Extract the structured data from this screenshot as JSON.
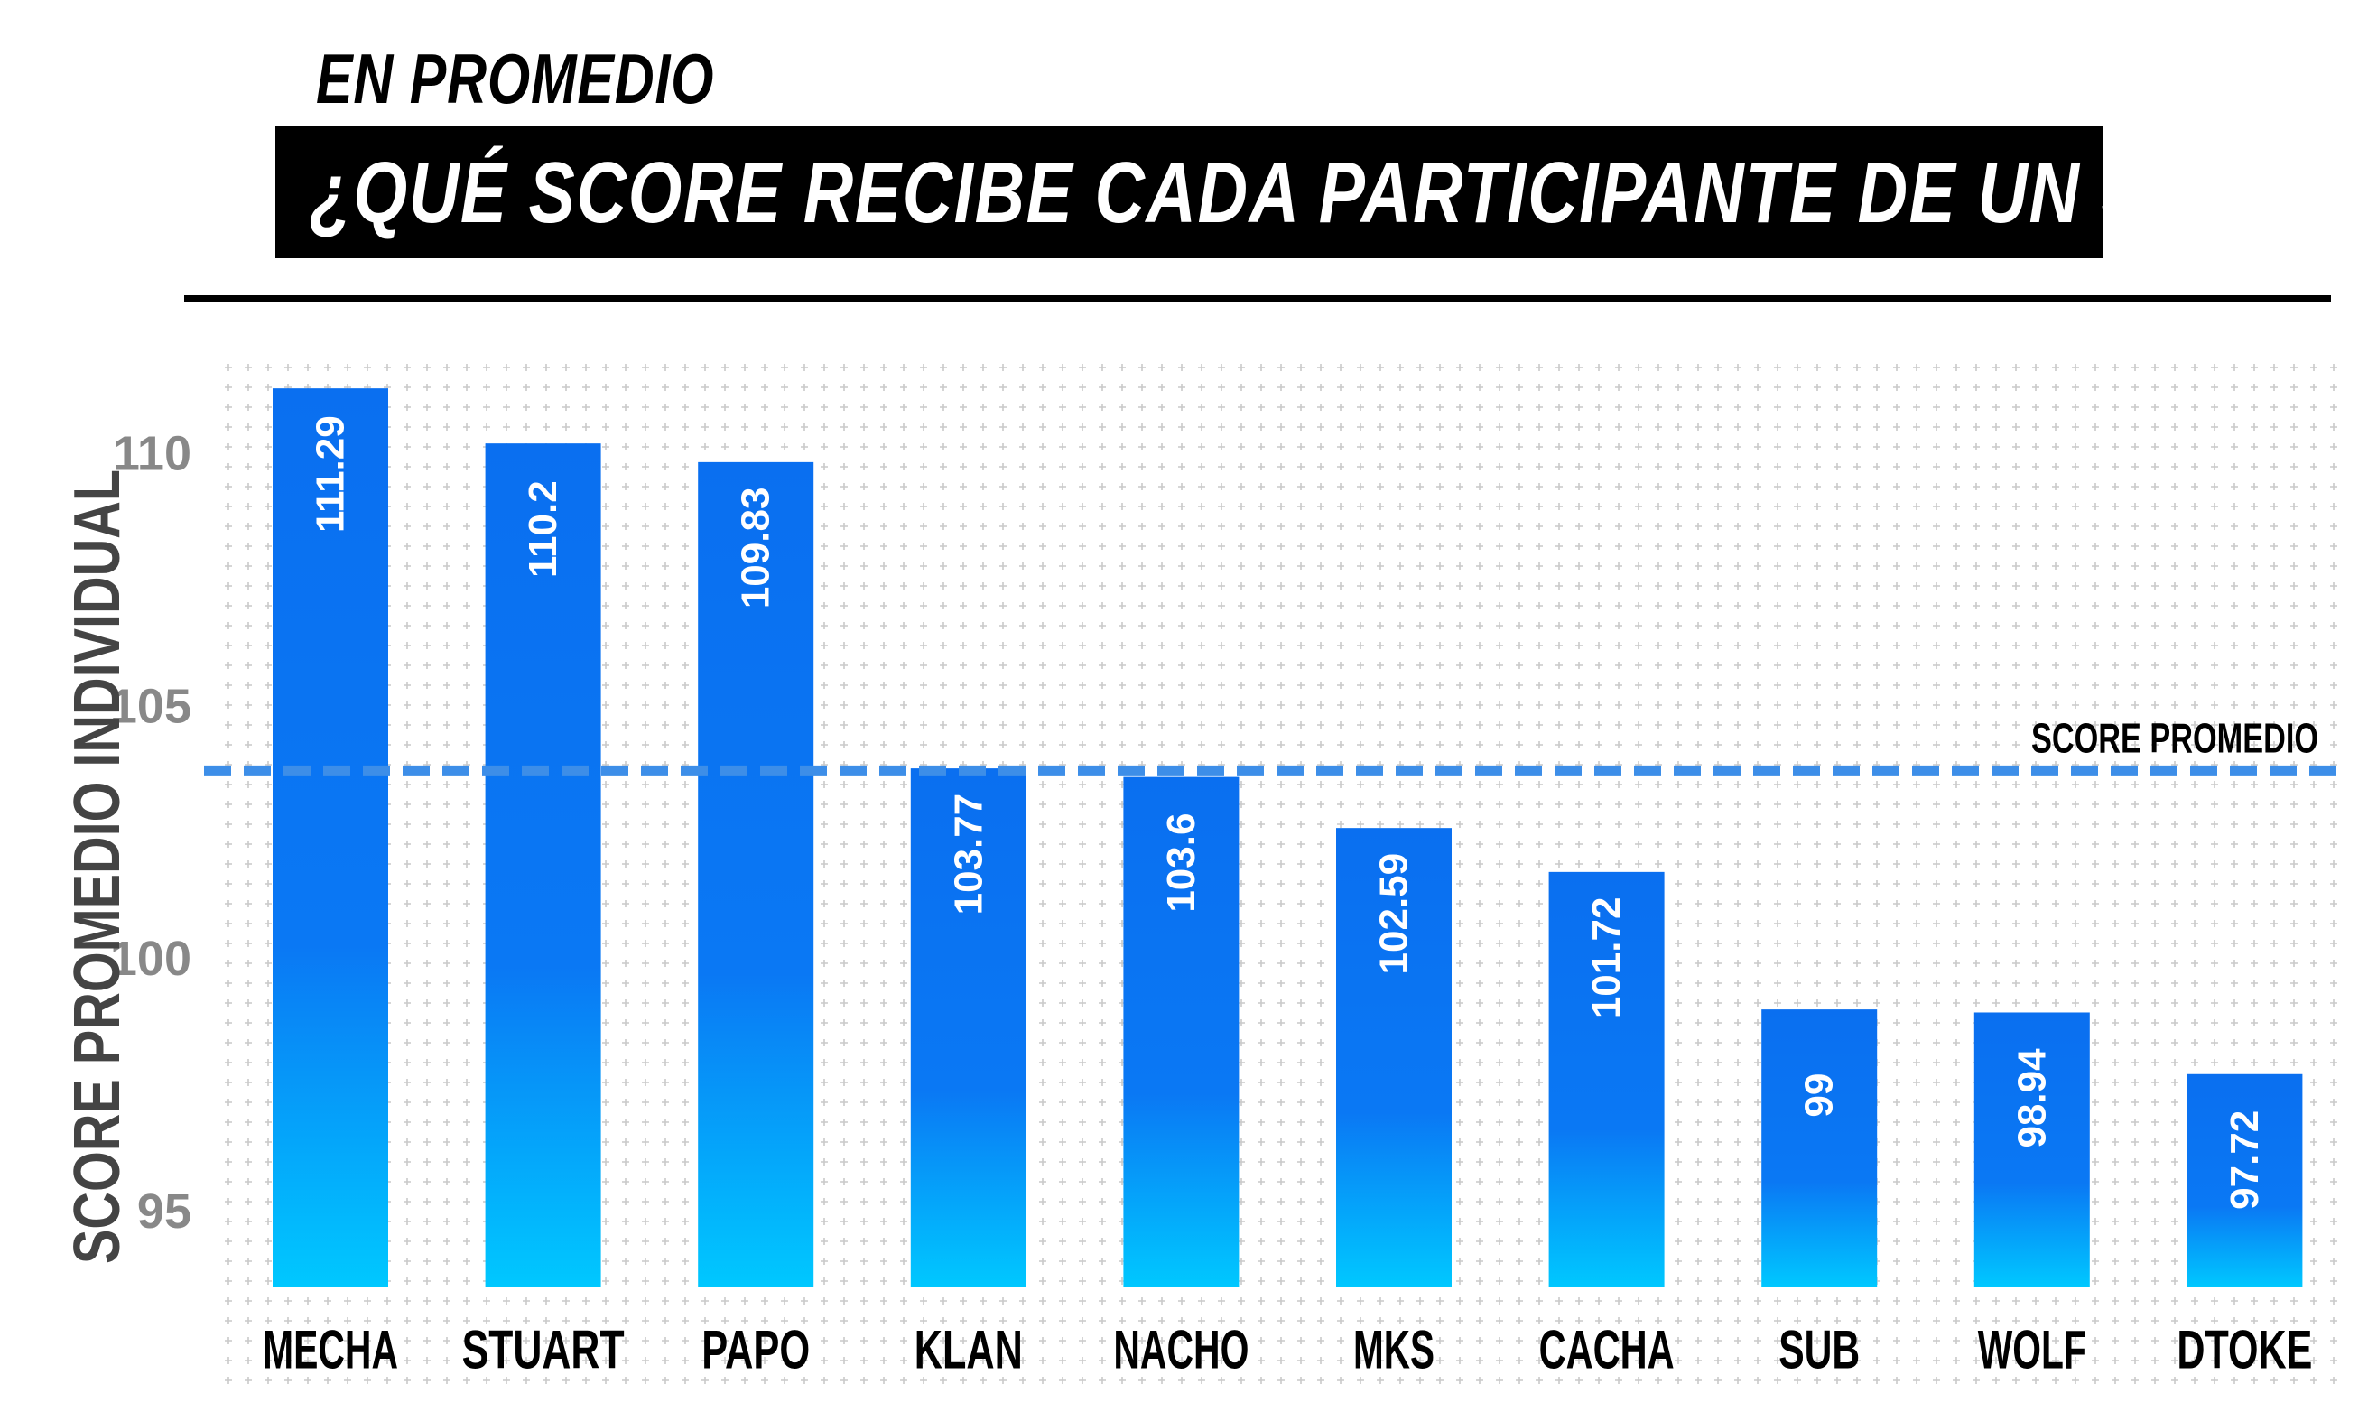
{
  "header": {
    "kicker": "EN PROMEDIO",
    "title": "¿QUÉ SCORE RECIBE CADA PARTICIPANTE DE UN JUEZ?"
  },
  "chart_data": {
    "type": "bar",
    "categories": [
      "MECHA",
      "STUART",
      "PAPO",
      "KLAN",
      "NACHO",
      "MKS",
      "CACHA",
      "SUB",
      "WOLF",
      "DTOKE"
    ],
    "values": [
      111.29,
      110.2,
      109.83,
      103.77,
      103.6,
      102.59,
      101.72,
      99,
      98.94,
      97.72
    ],
    "value_labels": [
      "111.29",
      "110.2",
      "109.83",
      "103.77",
      "103.6",
      "102.59",
      "101.72",
      "99",
      "98.94",
      "97.72"
    ],
    "title": "¿QUÉ SCORE RECIBE CADA PARTICIPANTE DE UN JUEZ?",
    "ylabel": "SCORE PROMEDIO INDIVIDUAL",
    "yticks": [
      95,
      100,
      105,
      110
    ],
    "ylim": [
      93.5,
      111.9
    ],
    "grid": false,
    "reference_line": {
      "label": "SCORE PROMEDIO",
      "value": 103.73,
      "style": "dashed"
    },
    "colors": {
      "bar_top": "#0a6ff0",
      "bar_bottom": "#00c8ff",
      "reference": "#3d8ee8",
      "tick_text": "#888888"
    }
  }
}
